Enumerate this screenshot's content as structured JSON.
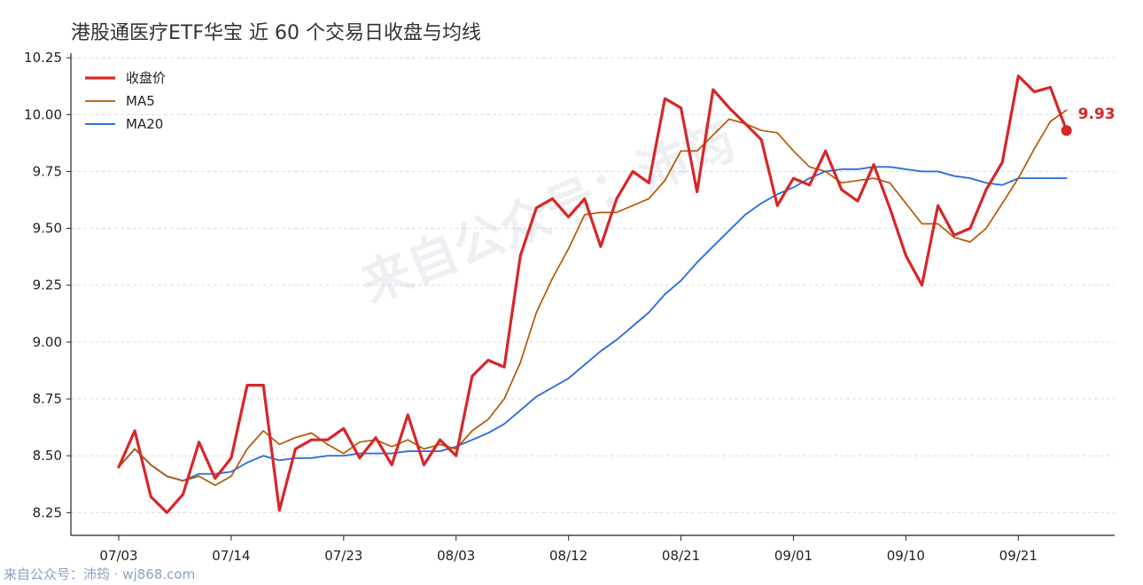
{
  "chart_data": {
    "type": "line",
    "title": "港股通医疗ETF华宝 近 60 个交易日收盘与均线",
    "xlabel": "",
    "ylabel": "",
    "ylim": [
      8.15,
      10.27
    ],
    "yticks": [
      "8.25",
      "8.50",
      "8.75",
      "9.00",
      "9.25",
      "9.50",
      "9.75",
      "10.00",
      "10.25"
    ],
    "ytick_values": [
      8.25,
      8.5,
      8.75,
      9.0,
      9.25,
      9.5,
      9.75,
      10.0,
      10.25
    ],
    "xtick_labels": [
      "07/03",
      "07/14",
      "07/23",
      "08/03",
      "08/12",
      "08/21",
      "09/01",
      "09/10",
      "09/21"
    ],
    "xtick_index": [
      0,
      7,
      14,
      21,
      28,
      35,
      42,
      49,
      56
    ],
    "grid": "horizontal dashed",
    "legend_position": "top-left",
    "colors": {
      "close": "#d62728",
      "ma5": "#b35806",
      "ma20": "#2f6fdc",
      "grid": "#dddddd",
      "axis": "#222222"
    },
    "series": [
      {
        "name": "收盘价",
        "key": "close",
        "values": [
          8.45,
          8.61,
          8.32,
          8.25,
          8.33,
          8.56,
          8.4,
          8.49,
          8.81,
          8.81,
          8.26,
          8.53,
          8.57,
          8.57,
          8.62,
          8.49,
          8.58,
          8.46,
          8.68,
          8.46,
          8.57,
          8.5,
          8.85,
          8.92,
          8.89,
          9.38,
          9.59,
          9.63,
          9.55,
          9.63,
          9.42,
          9.63,
          9.75,
          9.7,
          10.07,
          10.03,
          9.66,
          10.11,
          10.03,
          9.96,
          9.89,
          9.6,
          9.72,
          9.69,
          9.84,
          9.67,
          9.62,
          9.78,
          9.59,
          9.38,
          9.25,
          9.6,
          9.47,
          9.5,
          9.67,
          9.79,
          10.17,
          10.1,
          10.12,
          9.93
        ]
      },
      {
        "name": "MA5",
        "key": "ma5",
        "values": [
          8.45,
          8.53,
          8.46,
          8.41,
          8.39,
          8.41,
          8.37,
          8.41,
          8.53,
          8.61,
          8.55,
          8.58,
          8.6,
          8.55,
          8.51,
          8.56,
          8.57,
          8.54,
          8.57,
          8.53,
          8.55,
          8.53,
          8.61,
          8.66,
          8.75,
          8.91,
          9.13,
          9.28,
          9.41,
          9.56,
          9.57,
          9.57,
          9.6,
          9.63,
          9.71,
          9.84,
          9.84,
          9.91,
          9.98,
          9.96,
          9.93,
          9.92,
          9.84,
          9.77,
          9.75,
          9.7,
          9.71,
          9.72,
          9.7,
          9.61,
          9.52,
          9.52,
          9.46,
          9.44,
          9.5,
          9.61,
          9.72,
          9.85,
          9.97,
          10.02
        ]
      },
      {
        "name": "MA20",
        "key": "ma20",
        "values": [
          8.45,
          8.53,
          8.46,
          8.41,
          8.39,
          8.42,
          8.42,
          8.43,
          8.47,
          8.5,
          8.48,
          8.49,
          8.49,
          8.5,
          8.5,
          8.51,
          8.51,
          8.51,
          8.52,
          8.52,
          8.52,
          8.54,
          8.57,
          8.6,
          8.64,
          8.7,
          8.76,
          8.8,
          8.84,
          8.9,
          8.96,
          9.01,
          9.07,
          9.13,
          9.21,
          9.27,
          9.35,
          9.42,
          9.49,
          9.56,
          9.61,
          9.65,
          9.68,
          9.72,
          9.75,
          9.76,
          9.76,
          9.77,
          9.77,
          9.76,
          9.75,
          9.75,
          9.73,
          9.72,
          9.7,
          9.69,
          9.72,
          9.72,
          9.72,
          9.72
        ]
      }
    ],
    "last_value_label": "9.93"
  },
  "watermark_text": "来自公众号：沛筠",
  "footer_text": "来自公众号：沛筠 · wj868.com"
}
